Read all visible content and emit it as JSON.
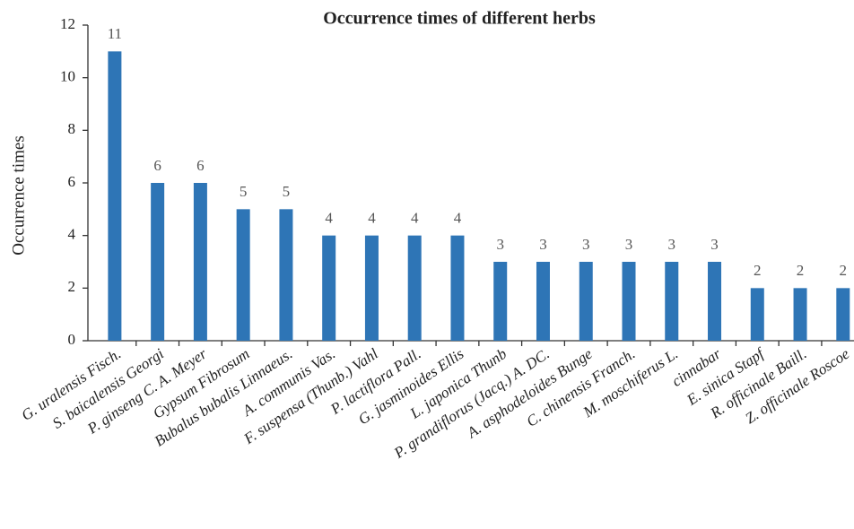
{
  "chart_data": {
    "type": "bar",
    "title": "Occurrence times of different herbs",
    "y_label": "Occurrence times",
    "categories": [
      "G. uralensis Fisch.",
      "S. baicalensis Georgi",
      "P. ginseng C. A. Meyer",
      "Gypsum Fibrosum",
      "Bubalus bubalis Linnaeus.",
      "A. communis Vas.",
      "F. suspensa (Thunb.) Vahl",
      "P. lactiflora Pall.",
      "G. jasminoides Ellis",
      "L. japonica Thunb",
      "P. grandiflorus (Jacq.) A. DC.",
      "A. asphodeloides Bunge",
      "C. chinensis Franch.",
      "M. moschiferus L.",
      "cinnabar",
      "E. sinica Stapf",
      "R. officinale Baill.",
      "Z. officinale Roscoe"
    ],
    "values": [
      11,
      6,
      6,
      5,
      5,
      4,
      4,
      4,
      4,
      3,
      3,
      3,
      3,
      3,
      3,
      2,
      2,
      2
    ],
    "color": "#2e75b6",
    "ylim": [
      0,
      12
    ],
    "yticks": [
      0,
      2,
      4,
      6,
      8,
      10,
      12
    ],
    "grid": false
  }
}
